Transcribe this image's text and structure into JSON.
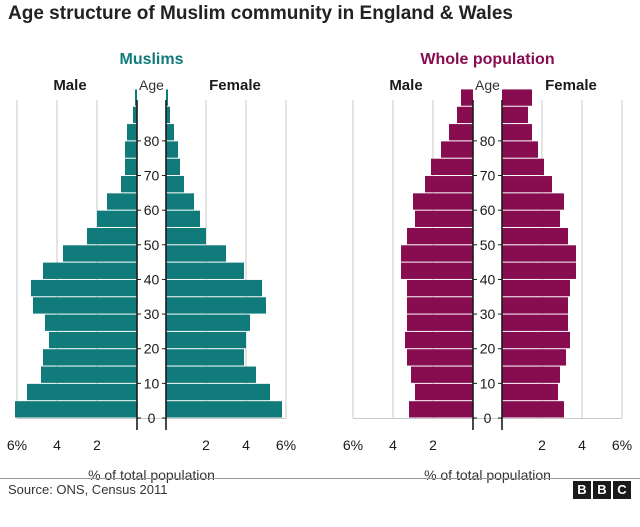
{
  "title": "Age structure of Muslim community in England & Wales",
  "source": "Source: ONS, Census 2011",
  "logo_letters": [
    "B",
    "B",
    "C"
  ],
  "colors": {
    "muslims": "#117b7b",
    "whole": "#880d50",
    "grid": "#c9c9c9",
    "axis": "#1a1a1a"
  },
  "chart_data": [
    {
      "type": "bar",
      "orientation": "horizontal",
      "title": "Muslims",
      "left_label": "Male",
      "right_label": "Female",
      "center_label": "Age",
      "xlabel": "% of total population",
      "xlim": [
        -6,
        6
      ],
      "x_ticks": [
        -6,
        -4,
        -2,
        2,
        4,
        6
      ],
      "x_tick_labels": [
        "6%",
        "4",
        "2",
        "2",
        "4",
        "6%"
      ],
      "age_ticks": [
        0,
        10,
        20,
        30,
        40,
        50,
        60,
        70,
        80
      ],
      "age_groups": [
        "0-4",
        "5-9",
        "10-14",
        "15-19",
        "20-24",
        "25-29",
        "30-34",
        "35-39",
        "40-44",
        "45-49",
        "50-54",
        "55-59",
        "60-64",
        "65-69",
        "70-74",
        "75-79",
        "80-84",
        "85-89",
        "90+"
      ],
      "series": [
        {
          "name": "Male",
          "values": [
            6.1,
            5.5,
            4.8,
            4.7,
            4.4,
            4.6,
            5.2,
            5.3,
            4.7,
            3.7,
            2.5,
            2.0,
            1.5,
            0.8,
            0.6,
            0.6,
            0.5,
            0.2,
            0.1
          ]
        },
        {
          "name": "Female",
          "values": [
            5.8,
            5.2,
            4.5,
            3.9,
            4.0,
            4.2,
            5.0,
            4.8,
            3.9,
            3.0,
            2.0,
            1.7,
            1.4,
            0.9,
            0.7,
            0.6,
            0.4,
            0.2,
            0.1
          ]
        }
      ]
    },
    {
      "type": "bar",
      "orientation": "horizontal",
      "title": "Whole population",
      "left_label": "Male",
      "right_label": "Female",
      "center_label": "Age",
      "xlabel": "% of total population",
      "xlim": [
        -6,
        6
      ],
      "x_ticks": [
        -6,
        -4,
        -2,
        2,
        4,
        6
      ],
      "x_tick_labels": [
        "6%",
        "4",
        "2",
        "2",
        "4",
        "6%"
      ],
      "age_ticks": [
        0,
        10,
        20,
        30,
        40,
        50,
        60,
        70,
        80
      ],
      "age_groups": [
        "0-4",
        "5-9",
        "10-14",
        "15-19",
        "20-24",
        "25-29",
        "30-34",
        "35-39",
        "40-44",
        "45-49",
        "50-54",
        "55-59",
        "60-64",
        "65-69",
        "70-74",
        "75-79",
        "80-84",
        "85-89",
        "90+"
      ],
      "series": [
        {
          "name": "Male",
          "values": [
            3.2,
            2.9,
            3.1,
            3.3,
            3.4,
            3.3,
            3.3,
            3.3,
            3.6,
            3.6,
            3.3,
            2.9,
            3.0,
            2.4,
            2.1,
            1.6,
            1.2,
            0.8,
            0.6
          ]
        },
        {
          "name": "Female",
          "values": [
            3.1,
            2.8,
            2.9,
            3.2,
            3.4,
            3.3,
            3.3,
            3.4,
            3.7,
            3.7,
            3.3,
            2.9,
            3.1,
            2.5,
            2.1,
            1.8,
            1.5,
            1.3,
            1.5
          ]
        }
      ]
    }
  ]
}
